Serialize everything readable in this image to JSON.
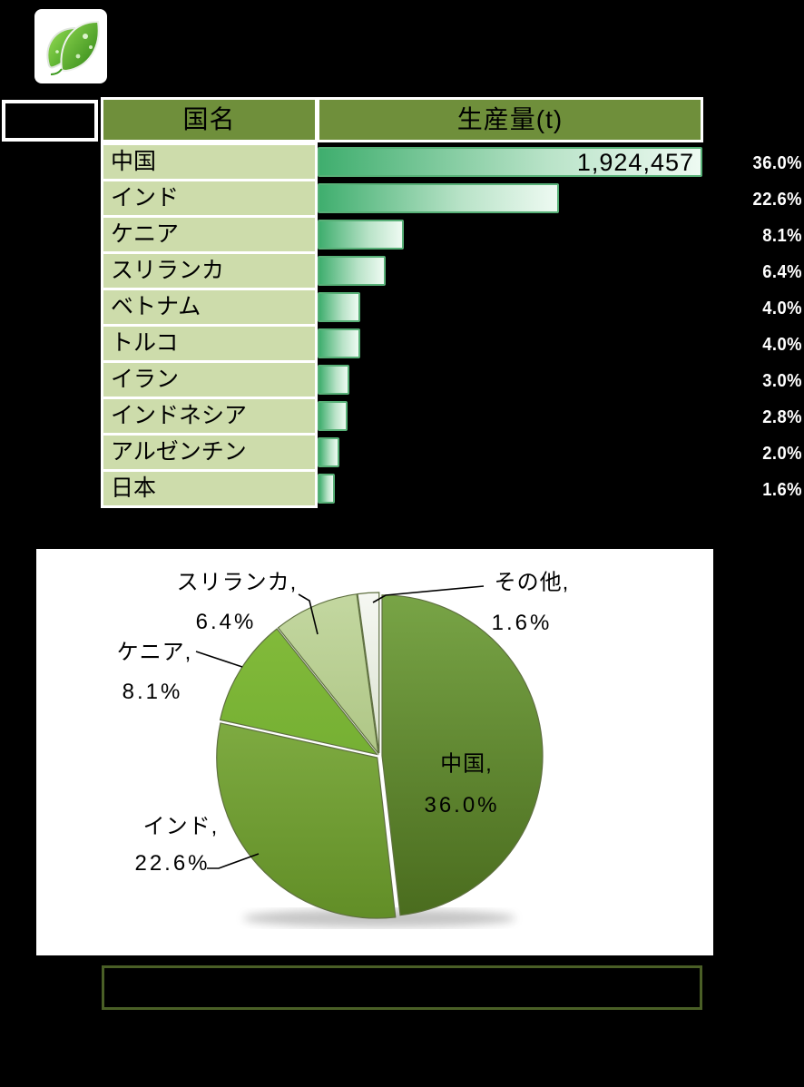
{
  "page": {
    "background": "#000000"
  },
  "logo": {
    "icon": "two-green-leaves-with-droplets"
  },
  "production_table": {
    "header": {
      "country": "国名",
      "production": "生産量(t)"
    },
    "rows": [
      {
        "country": "中国",
        "production_label": "1,924,457",
        "pct_label": "36.0%",
        "pct": 36.0
      },
      {
        "country": "インド",
        "production_label": "",
        "pct_label": "22.6%",
        "pct": 22.6
      },
      {
        "country": "ケニア",
        "production_label": "",
        "pct_label": "8.1%",
        "pct": 8.1
      },
      {
        "country": "スリランカ",
        "production_label": "",
        "pct_label": "6.4%",
        "pct": 6.4
      },
      {
        "country": "ベトナム",
        "production_label": "",
        "pct_label": "4.0%",
        "pct": 4.0
      },
      {
        "country": "トルコ",
        "production_label": "",
        "pct_label": "4.0%",
        "pct": 4.0
      },
      {
        "country": "イラン",
        "production_label": "",
        "pct_label": "3.0%",
        "pct": 3.0
      },
      {
        "country": "インドネシア",
        "production_label": "",
        "pct_label": "2.8%",
        "pct": 2.8
      },
      {
        "country": "アルゼンチン",
        "production_label": "",
        "pct_label": "2.0%",
        "pct": 2.0
      },
      {
        "country": "日本",
        "production_label": "",
        "pct_label": "1.6%",
        "pct": 1.6
      }
    ]
  },
  "caption_box": {
    "text": ""
  },
  "chart_data": [
    {
      "type": "bar",
      "title": "",
      "orientation": "horizontal",
      "categories": [
        "中国",
        "インド",
        "ケニア",
        "スリランカ",
        "ベトナム",
        "トルコ",
        "イラン",
        "インドネシア",
        "アルゼンチン",
        "日本"
      ],
      "values": [
        36.0,
        22.6,
        8.1,
        6.4,
        4.0,
        4.0,
        3.0,
        2.8,
        2.0,
        1.6
      ],
      "unit": "%",
      "xlabel": "生産量(t)",
      "bar_scale_max": 36.0,
      "visible_value_labels": {
        "中国": "1,924,457"
      },
      "grid": false,
      "legend": false
    },
    {
      "type": "pie",
      "title": "",
      "labels": [
        "中国",
        "インド",
        "ケニア",
        "スリランカ",
        "その他"
      ],
      "values": [
        36.0,
        22.6,
        8.1,
        6.4,
        1.6
      ],
      "unit": "%",
      "start_angle_deg": 0,
      "direction": "clockwise",
      "label_texts": [
        [
          "中国,",
          "36.0%"
        ],
        [
          "インド,",
          "22.6%"
        ],
        [
          "ケニア,",
          "8.1%"
        ],
        [
          "スリランカ,",
          "6.4%"
        ],
        [
          "その他,",
          "1.6%"
        ]
      ],
      "legend": false
    }
  ],
  "colors": {
    "background": "#000000",
    "table_header_bg": "#6f8f3b",
    "table_row_bg": "#cddcab",
    "grid_border": "#ffffff",
    "bar_border": "#57b077",
    "bar_gradient": [
      "#3fae6e",
      "#b9e3c8",
      "#eefaf2"
    ],
    "percent_text": "#ffffff",
    "value_text": "#000000",
    "panel_bg": "#ffffff",
    "caption_border": "#4a5f26",
    "pie_outline": "#5f7040",
    "pie_slices": [
      {
        "label": "中国",
        "light": "#78a446",
        "dark": "#4a6c1e"
      },
      {
        "label": "インド",
        "light": "#90bd52",
        "dark": "#628e27"
      },
      {
        "label": "ケニア",
        "light": "#85bd3c",
        "dark": "#66a22a"
      },
      {
        "label": "スリランカ",
        "light": "#c3d7a0",
        "dark": "#9ab56b"
      },
      {
        "label": "その他",
        "light": "#f5f7f2",
        "dark": "#bdcaa8"
      }
    ]
  }
}
